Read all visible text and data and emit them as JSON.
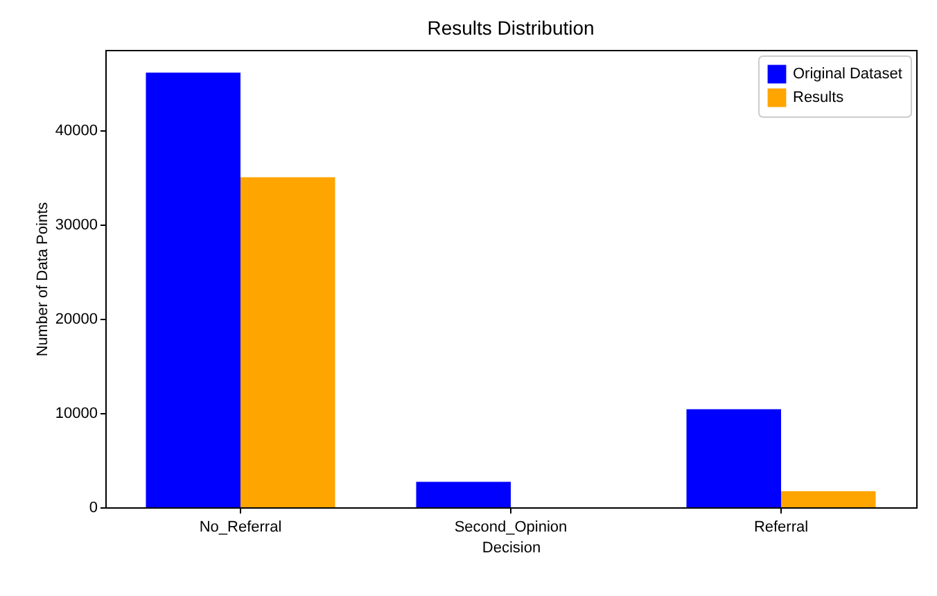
{
  "chart_data": {
    "type": "bar",
    "title": "Results Distribution",
    "xlabel": "Decision",
    "ylabel": "Number of Data Points",
    "categories": [
      "No_Referral",
      "Second_Opinion",
      "Referral"
    ],
    "series": [
      {
        "name": "Original Dataset",
        "color": "#0000ff",
        "values": [
          46100,
          2700,
          10400
        ]
      },
      {
        "name": "Results",
        "color": "#ffa500",
        "values": [
          35000,
          0,
          1700
        ]
      }
    ],
    "ylim": [
      0,
      48500
    ],
    "yticks": [
      0,
      10000,
      20000,
      30000,
      40000
    ],
    "grid": false,
    "legend": "top right"
  }
}
